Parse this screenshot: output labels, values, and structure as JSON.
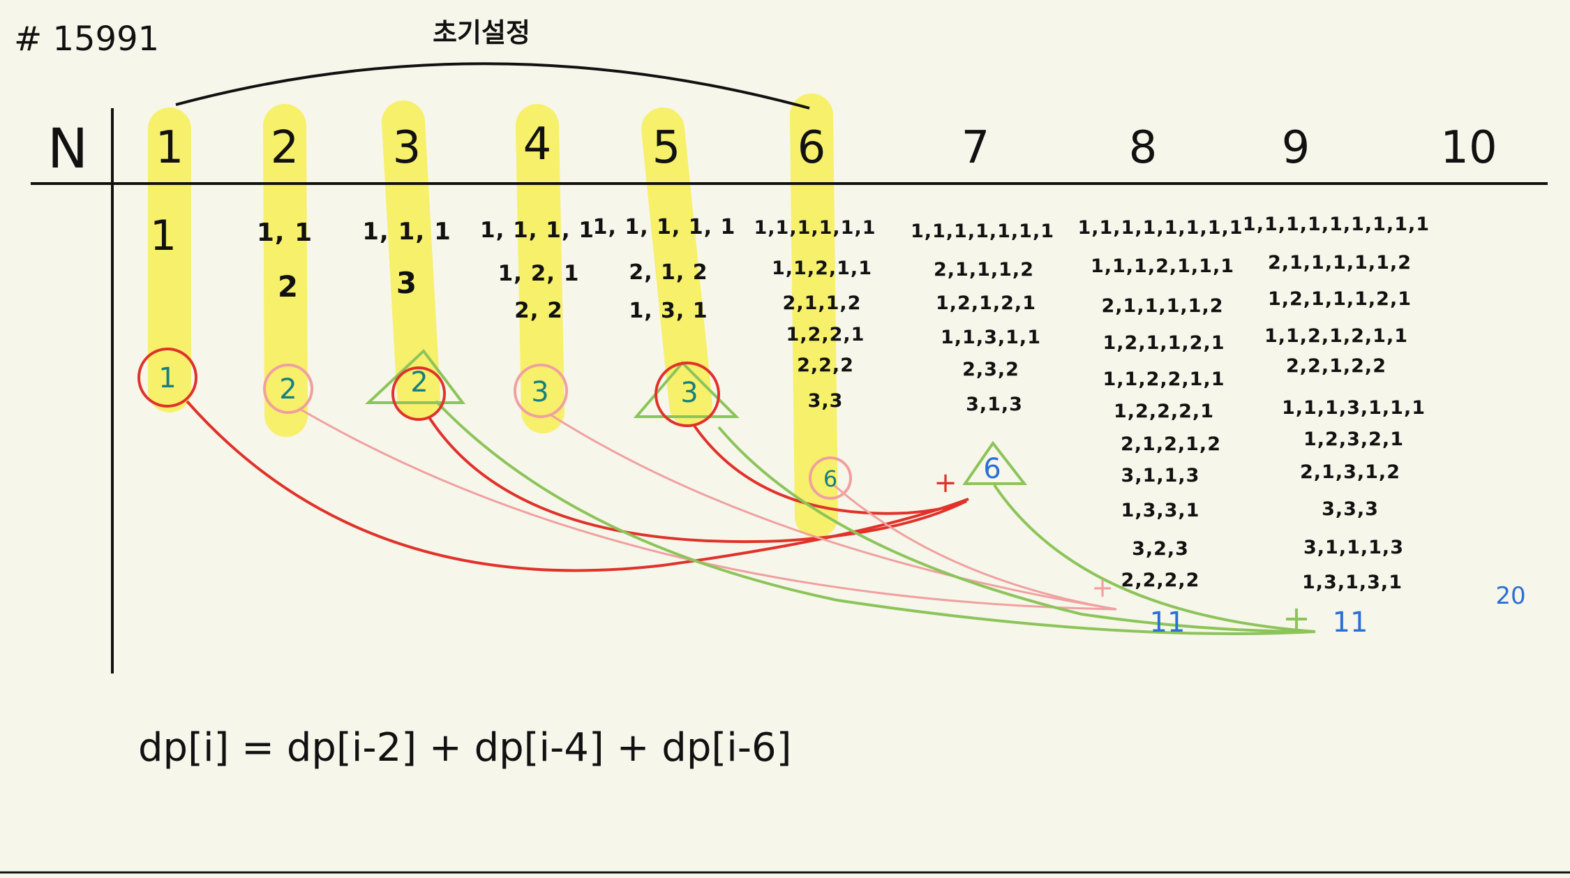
{
  "problem_label": "# 15991",
  "header_title": "초기설정",
  "row_label": "N",
  "columns": [
    {
      "n": "1",
      "combos": [
        "1"
      ],
      "count": "1",
      "highlighted": true,
      "marker": "red-circle"
    },
    {
      "n": "2",
      "combos": [
        "1, 1",
        "2"
      ],
      "count": "2",
      "highlighted": true,
      "marker": "pink-circle"
    },
    {
      "n": "3",
      "combos": [
        "1, 1, 1",
        "3"
      ],
      "count": "2",
      "highlighted": true,
      "marker": "red-circle-green-triangle"
    },
    {
      "n": "4",
      "combos": [
        "1, 1, 1, 1",
        "1, 2, 1",
        "2, 2"
      ],
      "count": "3",
      "highlighted": true,
      "marker": "pink-circle"
    },
    {
      "n": "5",
      "combos": [
        "1, 1, 1, 1, 1",
        "2, 1, 2",
        "1, 3, 1"
      ],
      "count": "3",
      "highlighted": true,
      "marker": "red-circle-green-triangle"
    },
    {
      "n": "6",
      "combos": [
        "1,1,1,1,1,1",
        "1,1,2,1,1",
        "2,1,1,2",
        "1,2,2,1",
        "2,2,2",
        "3,3"
      ],
      "count": "6",
      "highlighted": true,
      "marker": "pink-circle"
    },
    {
      "n": "7",
      "combos": [
        "1,1,1,1,1,1,1",
        "2,1,1,1,2",
        "1,2,1,2,1",
        "1,1,3,1,1",
        "2,3,2",
        "3,1,3"
      ],
      "count": "6",
      "highlighted": false,
      "marker": "green-triangle"
    },
    {
      "n": "8",
      "combos": [
        "1,1,1,1,1,1,1,1",
        "1,1,1,2,1,1,1",
        "2,1,1,1,1,2",
        "1,2,1,1,2,1",
        "1,1,2,2,1,1",
        "1,2,2,2,1",
        "2,1,2,1,2",
        "3,1,1,3",
        "1,3,3,1",
        "3,2,3",
        "2,2,2,2"
      ],
      "count": "11",
      "highlighted": false,
      "marker": "none"
    },
    {
      "n": "9",
      "combos": [
        "1,1,1,1,1,1,1,1,1",
        "2,1,1,1,1,1,2",
        "1,2,1,1,1,2,1",
        "1,1,2,1,2,1,1",
        "2,2,1,2,2",
        "1,1,1,3,1,1,1",
        "1,2,3,2,1",
        "2,1,3,1,2",
        "3,3,3",
        "3,1,1,1,3",
        "1,3,1,3,1"
      ],
      "count": "11",
      "highlighted": false,
      "marker": "none"
    },
    {
      "n": "10",
      "combos": [],
      "count": "20",
      "highlighted": false,
      "marker": "none"
    }
  ],
  "plus_signs": [
    "+",
    "+",
    "+"
  ],
  "formula": "dp[i] = dp[i-2] + dp[i-4] + dp[i-6]",
  "colors": {
    "background": "#f6f6ea",
    "highlight": "#f7f06a",
    "red": "#e0322a",
    "pink": "#f0a0a0",
    "green": "#8cc45a",
    "blue": "#2a6fd6"
  }
}
